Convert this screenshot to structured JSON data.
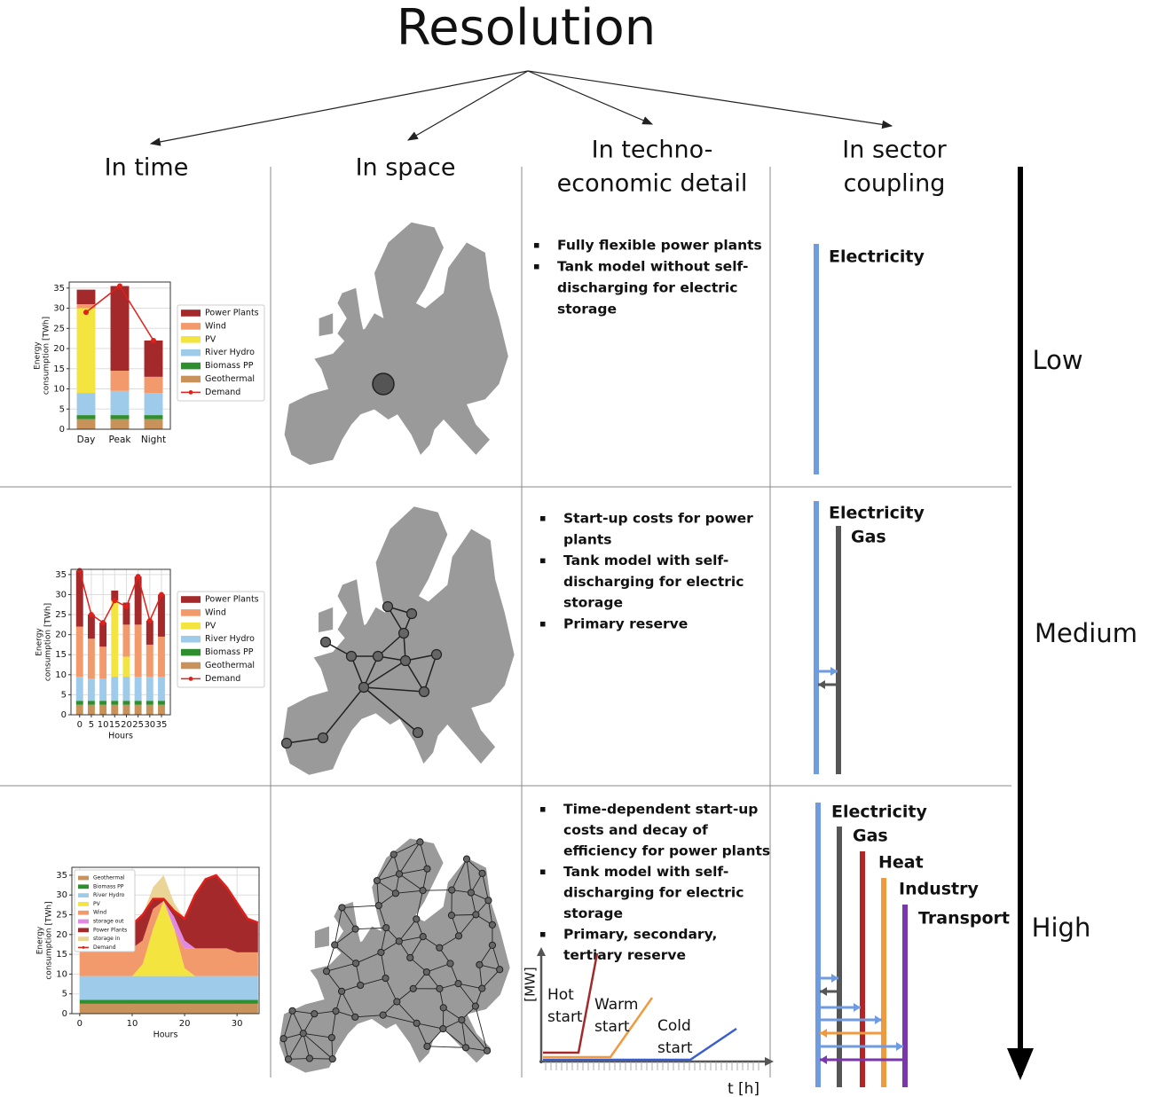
{
  "title": "Resolution",
  "columns": [
    [
      "In time"
    ],
    [
      "In space"
    ],
    [
      "In techno-",
      "economic detail"
    ],
    [
      "In sector",
      "coupling"
    ]
  ],
  "levels": [
    "Low",
    "Medium",
    "High"
  ],
  "time_charts": [
    {
      "type": "stacked_bar",
      "categories": [
        "Day",
        "Peak",
        "Night"
      ],
      "ylim": [
        0,
        36.5
      ],
      "yticks": [
        0,
        5,
        10,
        15,
        20,
        25,
        30,
        35
      ],
      "ylabel": [
        "Energy",
        "consumption [TWh]"
      ],
      "grid": true,
      "series": [
        {
          "name": "Power Plants",
          "color": "#a3292b",
          "values": [
            3.6,
            21,
            9
          ]
        },
        {
          "name": "Wind",
          "color": "#f29a6b",
          "values": [
            1,
            5,
            4
          ]
        },
        {
          "name": "PV",
          "color": "#f3e43f",
          "values": [
            21,
            0,
            0
          ]
        },
        {
          "name": "River Hydro",
          "color": "#9fcbeb",
          "values": [
            5.5,
            6,
            5.5
          ]
        },
        {
          "name": "Biomass PP",
          "color": "#2f8f2f",
          "values": [
            1,
            1,
            1
          ]
        },
        {
          "name": "Geothermal",
          "color": "#c8925a",
          "values": [
            2.5,
            2.5,
            2.5
          ]
        },
        {
          "name": "Demand",
          "color": "#e0201b",
          "type": "line",
          "values": [
            29,
            35.5,
            22
          ]
        }
      ]
    },
    {
      "type": "stacked_bar",
      "x": [
        0,
        5,
        10,
        15,
        20,
        25,
        30,
        35
      ],
      "xlim": [
        -3.7,
        38.8
      ],
      "xticks": [
        0,
        5,
        10,
        15,
        20,
        25,
        30,
        35
      ],
      "ylim": [
        0,
        36.3
      ],
      "yticks": [
        0,
        5,
        10,
        15,
        20,
        25,
        30,
        35
      ],
      "xlabel": "Hours",
      "ylabel": [
        "Energy",
        "consumption [TWh]"
      ],
      "grid": true,
      "series": [
        {
          "name": "Power Plants",
          "color": "#a3292b",
          "values": [
            14,
            6,
            6,
            2.5,
            5.5,
            12,
            6,
            10.5
          ]
        },
        {
          "name": "Wind",
          "color": "#f29a6b",
          "values": [
            12.5,
            10,
            8,
            0,
            8,
            13,
            8,
            10
          ]
        },
        {
          "name": "PV",
          "color": "#f3e43f",
          "values": [
            0,
            0,
            0,
            19,
            5,
            0,
            0,
            0
          ]
        },
        {
          "name": "River Hydro",
          "color": "#9fcbeb",
          "values": [
            6,
            5.5,
            5.5,
            6,
            6,
            6,
            6,
            6
          ]
        },
        {
          "name": "Biomass PP",
          "color": "#2f8f2f",
          "values": [
            1,
            1,
            1,
            1,
            1,
            1,
            1,
            1
          ]
        },
        {
          "name": "Geothermal",
          "color": "#c8925a",
          "values": [
            2.5,
            2.5,
            2.5,
            2.5,
            2.5,
            2.5,
            2.5,
            2.5
          ]
        },
        {
          "name": "Demand",
          "color": "#e0201b",
          "type": "line",
          "values": [
            36,
            25,
            23,
            28.5,
            27,
            34.5,
            23.5,
            30
          ]
        }
      ]
    },
    {
      "type": "stacked_area",
      "x": [
        0,
        2,
        4,
        6,
        8,
        10,
        12,
        14,
        16,
        18,
        20,
        22,
        24,
        26,
        28,
        30,
        32,
        34
      ],
      "xlim": [
        -1.5,
        34.2
      ],
      "xticks": [
        0,
        10,
        20,
        30
      ],
      "ylim": [
        0,
        37
      ],
      "yticks": [
        0,
        5,
        10,
        15,
        20,
        25,
        30,
        35
      ],
      "xlabel": "Hours",
      "ylabel": [
        "Energy",
        "consumption [TWh]"
      ],
      "grid": true,
      "series": [
        {
          "name": "Geothermal",
          "color": "#c8925a",
          "values": [
            2.5,
            2.5,
            2.5,
            2.5,
            2.5,
            2.5,
            2.5,
            2.5,
            2.5,
            2.5,
            2.5,
            2.5,
            2.5,
            2.5,
            2.5,
            2.5,
            2.5,
            2.5
          ]
        },
        {
          "name": "Biomass PP",
          "color": "#2f8f2f",
          "values": [
            1,
            1,
            1,
            1,
            1,
            1,
            1,
            1,
            1,
            1,
            1,
            1,
            1,
            1,
            1,
            1,
            1,
            1
          ]
        },
        {
          "name": "River Hydro",
          "color": "#9fcbeb",
          "values": [
            6,
            6,
            6,
            6,
            6,
            6,
            6,
            6,
            6,
            6,
            6,
            6,
            6,
            6,
            6,
            6,
            6,
            6
          ]
        },
        {
          "name": "PV",
          "color": "#f3e43f",
          "values": [
            0,
            0,
            0,
            0,
            0,
            0,
            3,
            12,
            19,
            12,
            2,
            0,
            0,
            0,
            0,
            0,
            0,
            0
          ]
        },
        {
          "name": "Wind",
          "color": "#f29a6b",
          "values": [
            7,
            7,
            7,
            7,
            7,
            7,
            6,
            5,
            0,
            0,
            5,
            7,
            7,
            7,
            7,
            6,
            6,
            6
          ]
        },
        {
          "name": "storage out",
          "color": "#e08ae6",
          "values": [
            0,
            0,
            0,
            0,
            0,
            0,
            0,
            0,
            0,
            3,
            2,
            0,
            0,
            0,
            0,
            0,
            0,
            0
          ]
        },
        {
          "name": "Power Plants",
          "color": "#a3292b",
          "values": [
            5.5,
            5.5,
            5.5,
            5.5,
            5.5,
            6,
            6.5,
            2.5,
            0.5,
            1.5,
            5.5,
            13.5,
            17.5,
            18.5,
            15.5,
            12.5,
            8.5,
            7.5
          ]
        },
        {
          "name": "storage in",
          "color": "#ead597",
          "values": [
            0,
            0,
            0,
            0,
            0,
            0,
            0,
            3,
            6,
            2,
            0,
            0,
            0,
            0,
            0,
            0,
            0,
            0
          ]
        },
        {
          "name": "Demand",
          "color": "#e0201b",
          "type": "line",
          "values": [
            22,
            22,
            22,
            22,
            22,
            22.5,
            25,
            29,
            29,
            26,
            24,
            30,
            34,
            35,
            32,
            28,
            24,
            23
          ]
        }
      ]
    }
  ],
  "techno_economic": [
    [
      [
        "Fully flexible power plants"
      ],
      [
        "Tank model without self-",
        "discharging for electric",
        "storage"
      ]
    ],
    [
      [
        "Start-up costs for power",
        "plants"
      ],
      [
        "Tank model with self-",
        "discharging for electric",
        "storage"
      ],
      [
        "Primary reserve"
      ]
    ],
    [
      [
        "Time-dependent start-up",
        "costs and decay of",
        "efficiency for power plants"
      ],
      [
        "Tank model with self-",
        "discharging for electric",
        "storage"
      ],
      [
        "Primary, secondary,",
        "tertiary reserve"
      ]
    ]
  ],
  "startup_chart": {
    "ylabel": "[MW]",
    "xlabel": "t [h]",
    "curves": [
      [
        "Hot",
        "start"
      ],
      [
        "Warm",
        "start"
      ],
      [
        "Cold",
        "start"
      ]
    ]
  },
  "sector_coupling": [
    [
      "Electricity"
    ],
    [
      "Electricity",
      "Gas"
    ],
    [
      "Electricity",
      "Gas",
      "Heat",
      "Industry",
      "Transport"
    ]
  ],
  "sector_colors": {
    "Electricity": "#4f7fd8",
    "Gas": "#555555",
    "Heat": "#b52424",
    "Industry": "#ef9a3e",
    "Transport": "#7a36ad"
  }
}
